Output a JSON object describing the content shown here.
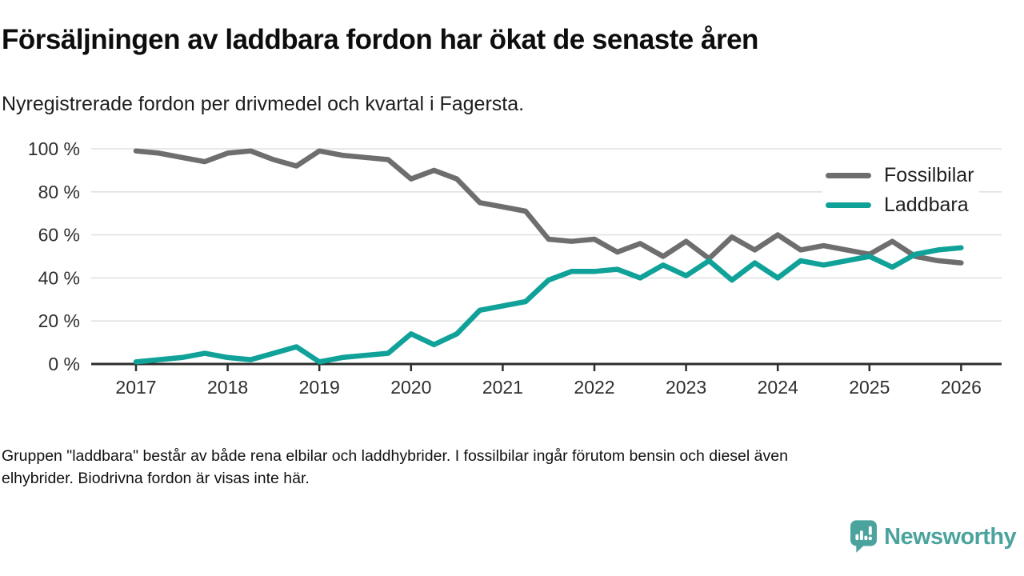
{
  "header": {
    "title": "Försäljningen av laddbara fordon har ökat de senaste åren",
    "subtitle": "Nyregistrerade fordon per drivmedel och kvartal i Fagersta."
  },
  "chart_data": {
    "type": "line",
    "x_unit": "quarter",
    "x": [
      "2017 Q1",
      "2017 Q2",
      "2017 Q3",
      "2017 Q4",
      "2018 Q1",
      "2018 Q2",
      "2018 Q3",
      "2018 Q4",
      "2019 Q1",
      "2019 Q2",
      "2019 Q3",
      "2019 Q4",
      "2020 Q1",
      "2020 Q2",
      "2020 Q3",
      "2020 Q4",
      "2021 Q1",
      "2021 Q2",
      "2021 Q3",
      "2021 Q4",
      "2022 Q1",
      "2022 Q2",
      "2022 Q3",
      "2022 Q4",
      "2023 Q1",
      "2023 Q2",
      "2023 Q3",
      "2023 Q4",
      "2024 Q1",
      "2024 Q2",
      "2024 Q3",
      "2024 Q4",
      "2025 Q1",
      "2025 Q2",
      "2025 Q3",
      "2025 Q4",
      "2026 Q1"
    ],
    "series": [
      {
        "name": "Fossilbilar",
        "color": "#6e6e6e",
        "values": [
          99,
          98,
          96,
          94,
          98,
          99,
          95,
          92,
          99,
          97,
          96,
          95,
          86,
          90,
          86,
          75,
          73,
          71,
          58,
          57,
          58,
          52,
          56,
          50,
          57,
          49,
          59,
          53,
          60,
          53,
          55,
          53,
          51,
          57,
          50,
          48,
          47
        ]
      },
      {
        "name": "Laddbara",
        "color": "#10a299",
        "values": [
          1,
          2,
          3,
          5,
          3,
          2,
          5,
          8,
          1,
          3,
          4,
          5,
          14,
          9,
          14,
          25,
          27,
          29,
          39,
          43,
          43,
          44,
          40,
          46,
          41,
          48,
          39,
          47,
          40,
          48,
          46,
          48,
          50,
          45,
          51,
          53,
          54
        ]
      }
    ],
    "y_ticks": [
      0,
      20,
      40,
      60,
      80,
      100
    ],
    "y_tick_suffix": " %",
    "x_tick_labels": [
      "2017",
      "2018",
      "2019",
      "2020",
      "2021",
      "2022",
      "2023",
      "2024",
      "2025",
      "2026"
    ],
    "ylim": [
      0,
      100
    ],
    "grid": "horizontal",
    "legend_position": "top-right",
    "grid_color": "#e1e1e1",
    "axis_color": "#2d2d2d",
    "tick_label_color": "#2e2e2e"
  },
  "footer": {
    "note_line1": "Gruppen \"laddbara\" består av både rena elbilar och laddhybrider. I fossilbilar ingår förutom bensin och diesel även",
    "note_line2": "elhybrider. Biodrivna fordon är visas inte här."
  },
  "branding": {
    "name": "Newsworthy",
    "color": "#4ba39d"
  }
}
